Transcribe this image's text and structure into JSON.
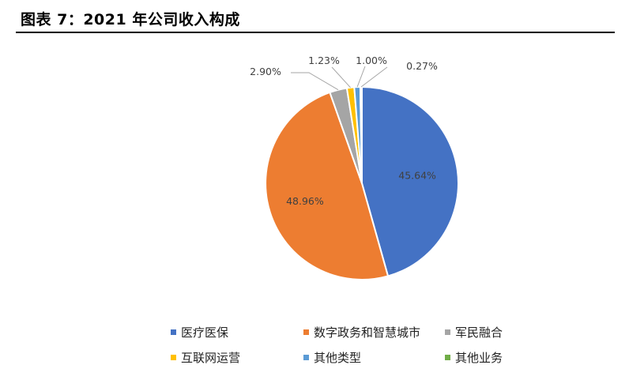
{
  "figure": {
    "title": "图表 7：2021 年公司收入构成"
  },
  "chart_data": {
    "type": "pie",
    "series": [
      {
        "name": "医疗医保",
        "value": 45.64,
        "label": "45.64%",
        "color": "#4472C4"
      },
      {
        "name": "数字政务和智慧城市",
        "value": 48.96,
        "label": "48.96%",
        "color": "#ED7D31"
      },
      {
        "name": "军民融合",
        "value": 2.9,
        "label": "2.90%",
        "color": "#A5A5A5"
      },
      {
        "name": "互联网运营",
        "value": 1.23,
        "label": "1.23%",
        "color": "#FFC000"
      },
      {
        "name": "其他类型",
        "value": 1.0,
        "label": "1.00%",
        "color": "#5B9BD5"
      },
      {
        "name": "其他业务",
        "value": 0.27,
        "label": "0.27%",
        "color": "#70AD47"
      }
    ],
    "legend_position": "bottom"
  }
}
